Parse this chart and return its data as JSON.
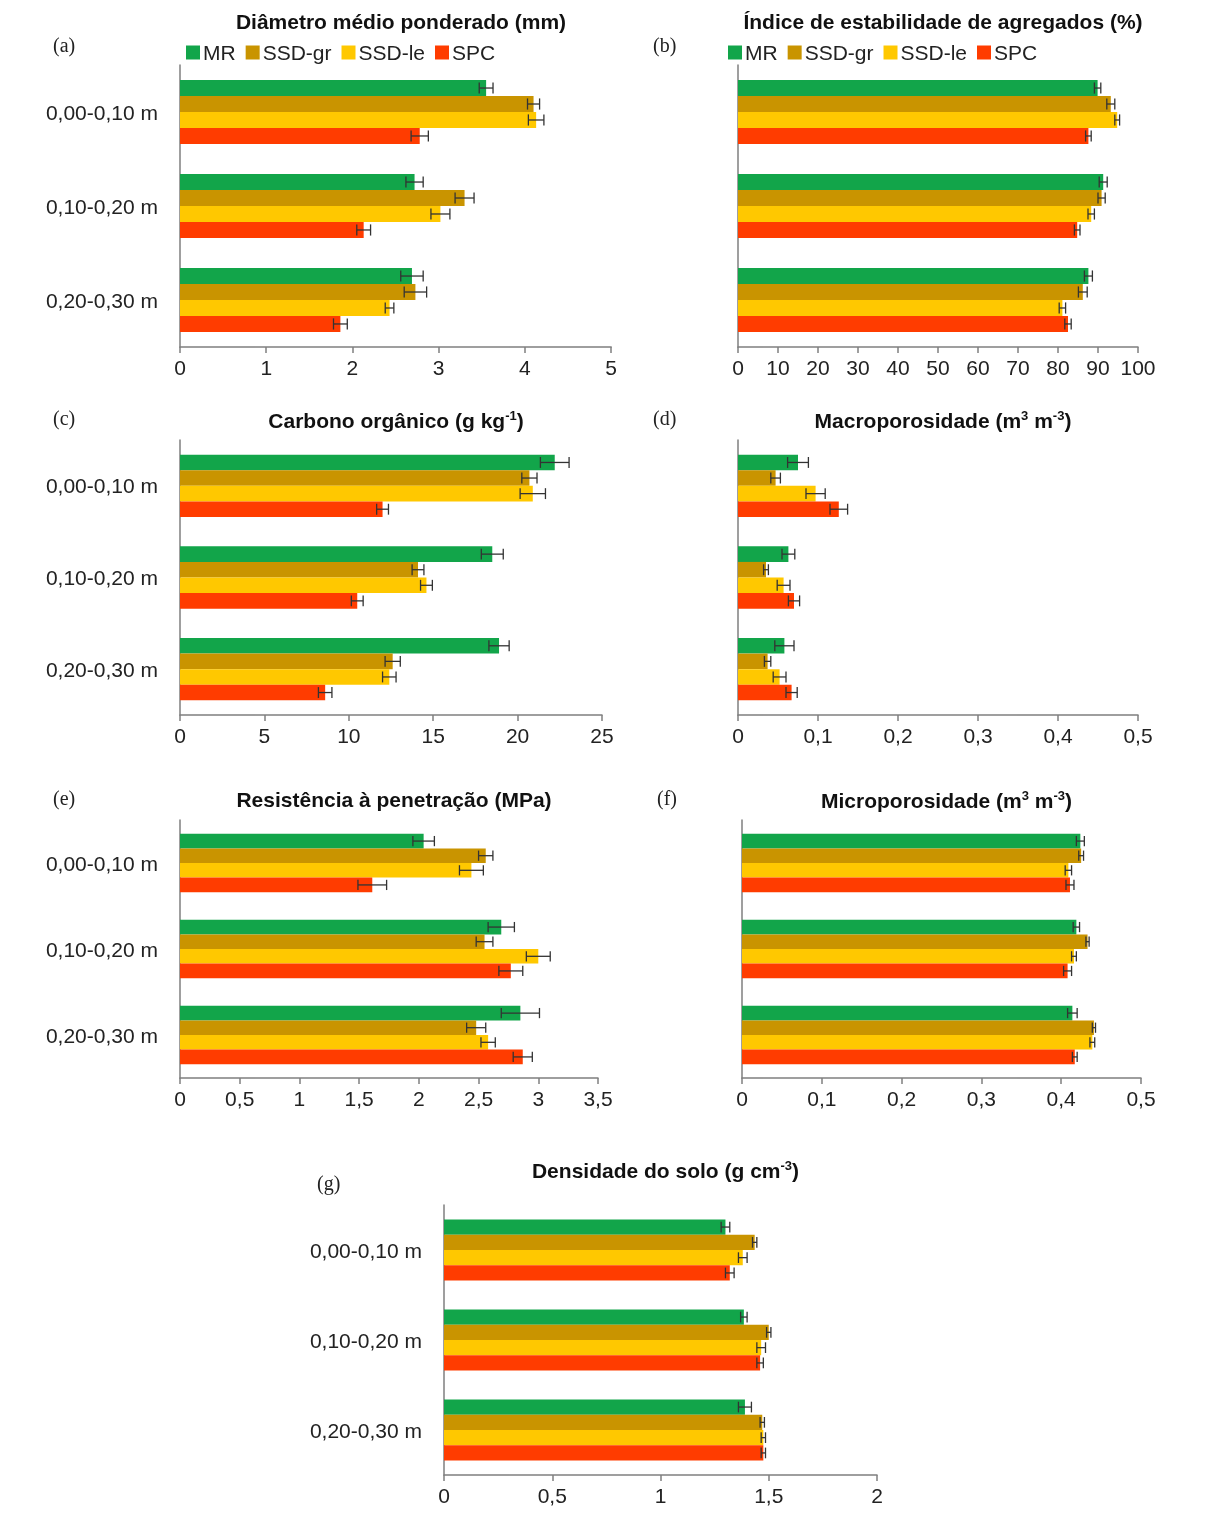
{
  "chart_data": [
    {
      "type": "bar",
      "orientation": "horizontal",
      "title": "Diâmetro médio ponderado (mm)",
      "annotations": [
        "(a)"
      ],
      "categories": [
        "0,00-0,10 m",
        "0,10-0,20 m",
        "0,20-0,30 m"
      ],
      "legend": "top",
      "xlim": [
        0,
        5
      ],
      "xticks": [
        0,
        1,
        2,
        3,
        4,
        5
      ],
      "series": [
        {
          "name": "MR",
          "color": "#12a54a",
          "values": [
            3.55,
            2.72,
            2.69
          ],
          "errors": [
            0.08,
            0.1,
            0.13
          ]
        },
        {
          "name": "SSD-gr",
          "color": "#c99400",
          "values": [
            4.1,
            3.3,
            2.73
          ],
          "errors": [
            0.07,
            0.11,
            0.13
          ]
        },
        {
          "name": "SSD-le",
          "color": "#ffc800",
          "values": [
            4.13,
            3.02,
            2.43
          ],
          "errors": [
            0.09,
            0.11,
            0.05
          ]
        },
        {
          "name": "SPC",
          "color": "#ff3c00",
          "values": [
            2.78,
            2.13,
            1.86
          ],
          "errors": [
            0.1,
            0.08,
            0.08
          ]
        }
      ]
    },
    {
      "type": "bar",
      "orientation": "horizontal",
      "title": "Índice de estabilidade de agregados (%)",
      "annotations": [
        "(b)"
      ],
      "categories": [
        null,
        null,
        null
      ],
      "legend": "top",
      "xlim": [
        0,
        100
      ],
      "xticks": [
        0,
        10,
        20,
        30,
        40,
        50,
        60,
        70,
        80,
        90,
        100
      ],
      "series": [
        {
          "name": "MR",
          "color": "#12a54a",
          "values": [
            89.9,
            91.3,
            87.6
          ],
          "errors": [
            0.8,
            1,
            1
          ]
        },
        {
          "name": "SSD-gr",
          "color": "#c99400",
          "values": [
            93.2,
            90.9,
            86.2
          ],
          "errors": [
            1,
            0.9,
            1.1
          ]
        },
        {
          "name": "SSD-le",
          "color": "#ffc800",
          "values": [
            94.8,
            88.3,
            81.1
          ],
          "errors": [
            0.6,
            0.8,
            0.8
          ]
        },
        {
          "name": "SPC",
          "color": "#ff3c00",
          "values": [
            87.6,
            84.8,
            82.5
          ],
          "errors": [
            0.7,
            0.7,
            0.8
          ]
        }
      ]
    },
    {
      "type": "bar",
      "orientation": "horizontal",
      "title": "Carbono orgânico (g kg$^{-1}$)",
      "annotations": [
        "(c)"
      ],
      "categories": [
        "0,00-0,10 m",
        "0,10-0,20 m",
        "0,20-0,30 m"
      ],
      "xlim": [
        0,
        25
      ],
      "xticks": [
        0,
        5,
        10,
        15,
        20,
        25
      ],
      "series": [
        {
          "color": "#12a54a",
          "values": [
            22.2,
            18.5,
            18.9
          ],
          "errors": [
            0.85,
            0.65,
            0.6
          ]
        },
        {
          "color": "#c99400",
          "values": [
            20.7,
            14.1,
            12.6
          ],
          "errors": [
            0.45,
            0.35,
            0.45
          ]
        },
        {
          "color": "#ffc800",
          "values": [
            20.9,
            14.6,
            12.4
          ],
          "errors": [
            0.75,
            0.35,
            0.4
          ]
        },
        {
          "color": "#ff3c00",
          "values": [
            12.0,
            10.5,
            8.6
          ],
          "errors": [
            0.35,
            0.35,
            0.4
          ]
        }
      ]
    },
    {
      "type": "bar",
      "orientation": "horizontal",
      "title": "Macroporosidade (m$^{3}$ m$^{-3}$)",
      "annotations": [
        "(d)"
      ],
      "categories": [
        null,
        null,
        null
      ],
      "xlim": [
        0,
        0.5
      ],
      "xticks": [
        0,
        {
          "value": 0.1,
          "label": "0,1"
        },
        {
          "value": 0.2,
          "label": "0,2"
        },
        {
          "value": 0.3,
          "label": "0,3"
        },
        {
          "value": 0.4,
          "label": "0,4"
        },
        {
          "value": 0.5,
          "label": "0,5"
        }
      ],
      "series": [
        {
          "color": "#12a54a",
          "values": [
            0.075,
            0.063,
            0.058
          ],
          "errors": [
            0.013,
            0.008,
            0.012
          ]
        },
        {
          "color": "#c99400",
          "values": [
            0.047,
            0.035,
            0.037
          ],
          "errors": [
            0.006,
            0.003,
            0.004
          ]
        },
        {
          "color": "#ffc800",
          "values": [
            0.097,
            0.057,
            0.052
          ],
          "errors": [
            0.012,
            0.008,
            0.008
          ]
        },
        {
          "color": "#ff3c00",
          "values": [
            0.126,
            0.07,
            0.067
          ],
          "errors": [
            0.011,
            0.007,
            0.007
          ]
        }
      ]
    },
    {
      "type": "bar",
      "orientation": "horizontal",
      "title": "Resistência à penetração (MPa)",
      "annotations": [
        "(e)"
      ],
      "categories": [
        "0,00-0,10 m",
        "0,10-0,20 m",
        "0,20-0,30 m"
      ],
      "xlim": [
        0,
        3.5
      ],
      "xticks": [
        0,
        {
          "value": 0.5,
          "label": "0,5"
        },
        1,
        {
          "value": 1.5,
          "label": "1,5"
        },
        2,
        {
          "value": 2.5,
          "label": "2,5"
        },
        3,
        {
          "value": 3.5,
          "label": "3,5"
        }
      ],
      "series": [
        {
          "color": "#12a54a",
          "values": [
            2.04,
            2.69,
            2.85
          ],
          "errors": [
            0.09,
            0.11,
            0.16
          ]
        },
        {
          "color": "#c99400",
          "values": [
            2.56,
            2.55,
            2.48
          ],
          "errors": [
            0.06,
            0.07,
            0.08
          ]
        },
        {
          "color": "#ffc800",
          "values": [
            2.44,
            3.0,
            2.58
          ],
          "errors": [
            0.1,
            0.1,
            0.06
          ]
        },
        {
          "color": "#ff3c00",
          "values": [
            1.61,
            2.77,
            2.87
          ],
          "errors": [
            0.12,
            0.1,
            0.08
          ]
        }
      ]
    },
    {
      "type": "bar",
      "orientation": "horizontal",
      "title": "Microporosidade (m$^{3}$ m$^{-3}$)",
      "annotations": [
        "(f)"
      ],
      "categories": [
        null,
        null,
        null
      ],
      "xlim": [
        0,
        0.5
      ],
      "xticks": [
        0,
        {
          "value": 0.1,
          "label": "0,1"
        },
        {
          "value": 0.2,
          "label": "0,2"
        },
        {
          "value": 0.3,
          "label": "0,3"
        },
        {
          "value": 0.4,
          "label": "0,4"
        },
        {
          "value": 0.5,
          "label": "0,5"
        }
      ],
      "series": [
        {
          "color": "#12a54a",
          "values": [
            0.424,
            0.419,
            0.414
          ],
          "errors": [
            0.005,
            0.004,
            0.006
          ]
        },
        {
          "color": "#c99400",
          "values": [
            0.425,
            0.433,
            0.441
          ],
          "errors": [
            0.003,
            0.002,
            0.002
          ]
        },
        {
          "color": "#ffc800",
          "values": [
            0.409,
            0.416,
            0.439
          ],
          "errors": [
            0.004,
            0.003,
            0.003
          ]
        },
        {
          "color": "#ff3c00",
          "values": [
            0.411,
            0.408,
            0.417
          ],
          "errors": [
            0.005,
            0.005,
            0.003
          ]
        }
      ]
    },
    {
      "type": "bar",
      "orientation": "horizontal",
      "title": "Densidade do solo (g cm$^{-3}$)",
      "annotations": [
        "(g)"
      ],
      "categories": [
        "0,00-0,10 m",
        "0,10-0,20 m",
        "0,20-0,30 m"
      ],
      "xlim": [
        0,
        2
      ],
      "xticks": [
        0,
        {
          "value": 0.5,
          "label": "0,5"
        },
        1,
        {
          "value": 1.5,
          "label": "1,5"
        },
        2
      ],
      "series": [
        {
          "color": "#12a54a",
          "values": [
            1.3,
            1.385,
            1.39
          ],
          "errors": [
            0.02,
            0.015,
            0.03
          ]
        },
        {
          "color": "#c99400",
          "values": [
            1.435,
            1.5,
            1.47
          ],
          "errors": [
            0.01,
            0.01,
            0.01
          ]
        },
        {
          "color": "#ffc800",
          "values": [
            1.38,
            1.465,
            1.475
          ],
          "errors": [
            0.02,
            0.02,
            0.01
          ]
        },
        {
          "color": "#ff3c00",
          "values": [
            1.32,
            1.46,
            1.475
          ],
          "errors": [
            0.02,
            0.015,
            0.01
          ]
        }
      ]
    }
  ]
}
